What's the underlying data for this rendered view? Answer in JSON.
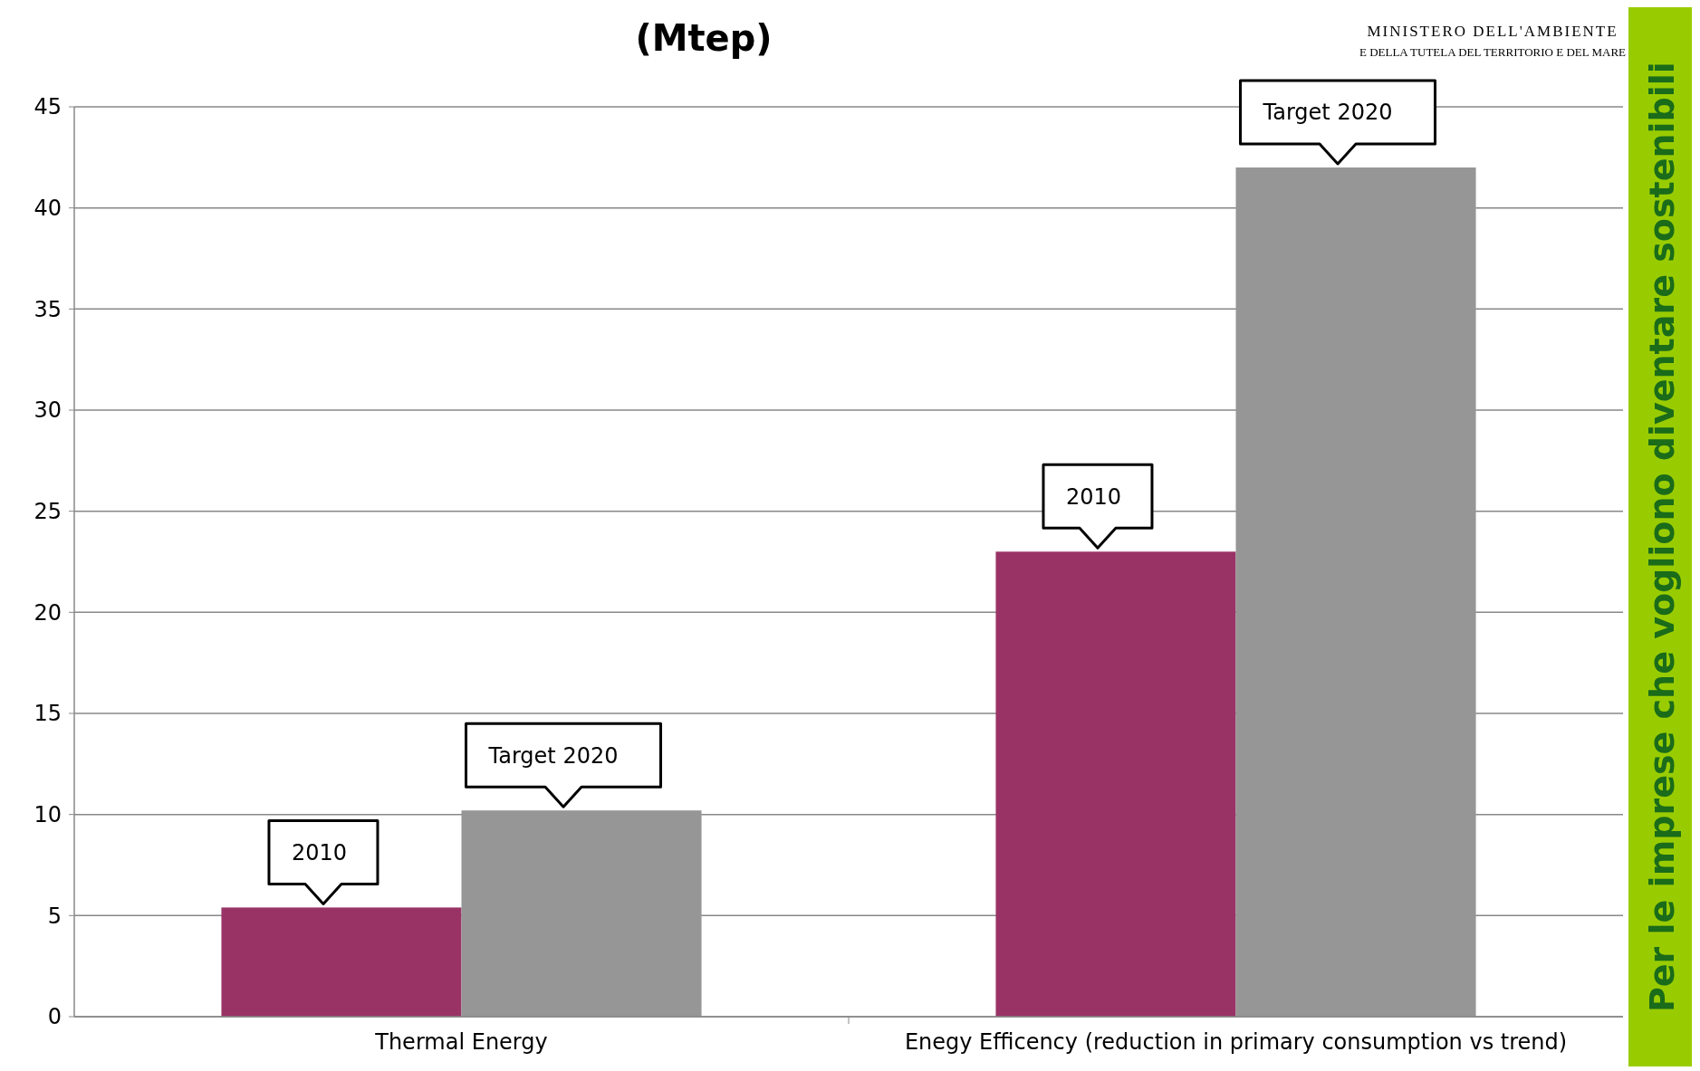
{
  "chart_data": {
    "type": "bar",
    "title": "(Mtep)",
    "categories": [
      "Thermal Energy",
      "Enegy Efficency (reduction in primary consumption vs trend)"
    ],
    "series": [
      {
        "color": "#993366",
        "values": [
          5.4,
          23
        ]
      },
      {
        "color": "#969696",
        "values": [
          10.2,
          42
        ]
      }
    ],
    "ylim": [
      0,
      45
    ],
    "yticks": [
      0,
      5,
      10,
      15,
      20,
      25,
      30,
      35,
      40,
      45
    ],
    "grid": "y",
    "annotations": [
      "2010",
      "Target 2020",
      "2010",
      "Target 2020",
      "Per le imprese che vogliono diventare sostenibili",
      "MINISTERO DELL'AMBIENTE",
      "E DELLA TUTELA DEL TERRITORIO E DEL MARE"
    ]
  }
}
